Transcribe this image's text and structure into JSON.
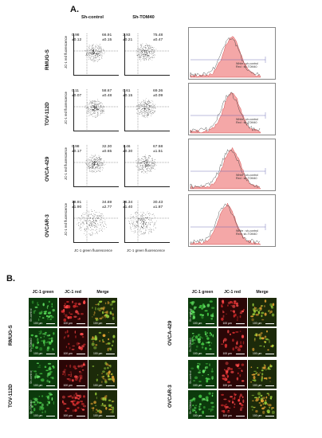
{
  "panel_a": {
    "letter": "A.",
    "col_headers": [
      "Sh-control",
      "Sh-TOM40"
    ],
    "y_axis_label": "JC-1 red fluorescence",
    "x_axis_label": "JC-1 green fluorescence",
    "legend": [
      "White : sh-control",
      "Red : sh-TOM40"
    ],
    "rows": [
      {
        "name": "RMUG-S",
        "ctrl": {
          "ul": "0.98\n±0.12",
          "ur": "66.91\n±0.15"
        },
        "tom": {
          "ul": "3.93\n±0.21",
          "ur": "75.48\n±0.47"
        }
      },
      {
        "name": "TOV-112D",
        "ctrl": {
          "ul": "0.11\n±0.07",
          "ur": "58.67\n±0.48"
        },
        "tom": {
          "ul": "0.61\n±0.15",
          "ur": "69.36\n±0.09"
        }
      },
      {
        "name": "OVCA-429",
        "ctrl": {
          "ul": "0.98\n±0.17",
          "ur": "32.30\n±0.65"
        },
        "tom": {
          "ul": "1.46\n±0.30",
          "ur": "67.58\n±1.51"
        }
      },
      {
        "name": "OVCAR-3",
        "ctrl": {
          "ul": "18.91\n±1.90",
          "ur": "34.69\n±2.77"
        },
        "tom": {
          "ul": "36.34\n±1.40",
          "ur": "30.43\n±1.87"
        }
      }
    ]
  },
  "panel_b": {
    "letter": "B.",
    "col_headers": [
      "JC-1 green",
      "JC-1 red",
      "Merge"
    ],
    "left": {
      "cells": [
        {
          "name": "RMUG-S",
          "rows": [
            "Sh-control",
            "Sh-TOM40"
          ]
        },
        {
          "name": "TOV-112D",
          "rows": [
            "Sh-control",
            "Sh-TOM40"
          ]
        }
      ]
    },
    "right": {
      "cells": [
        {
          "name": "OVCA-429",
          "rows": [
            "Sh-control",
            "Sh-TOM40"
          ]
        },
        {
          "name": "OVCAR-3",
          "rows": [
            "Sh-control",
            "Sh-TOM40"
          ]
        }
      ]
    },
    "scale_bar": "100 µm"
  },
  "colors": {
    "green_channel": "#0c3a0c",
    "red_channel": "#2a0606",
    "merge_channel": "#1c2a0a",
    "histogram_red": "#f4a7a7"
  }
}
